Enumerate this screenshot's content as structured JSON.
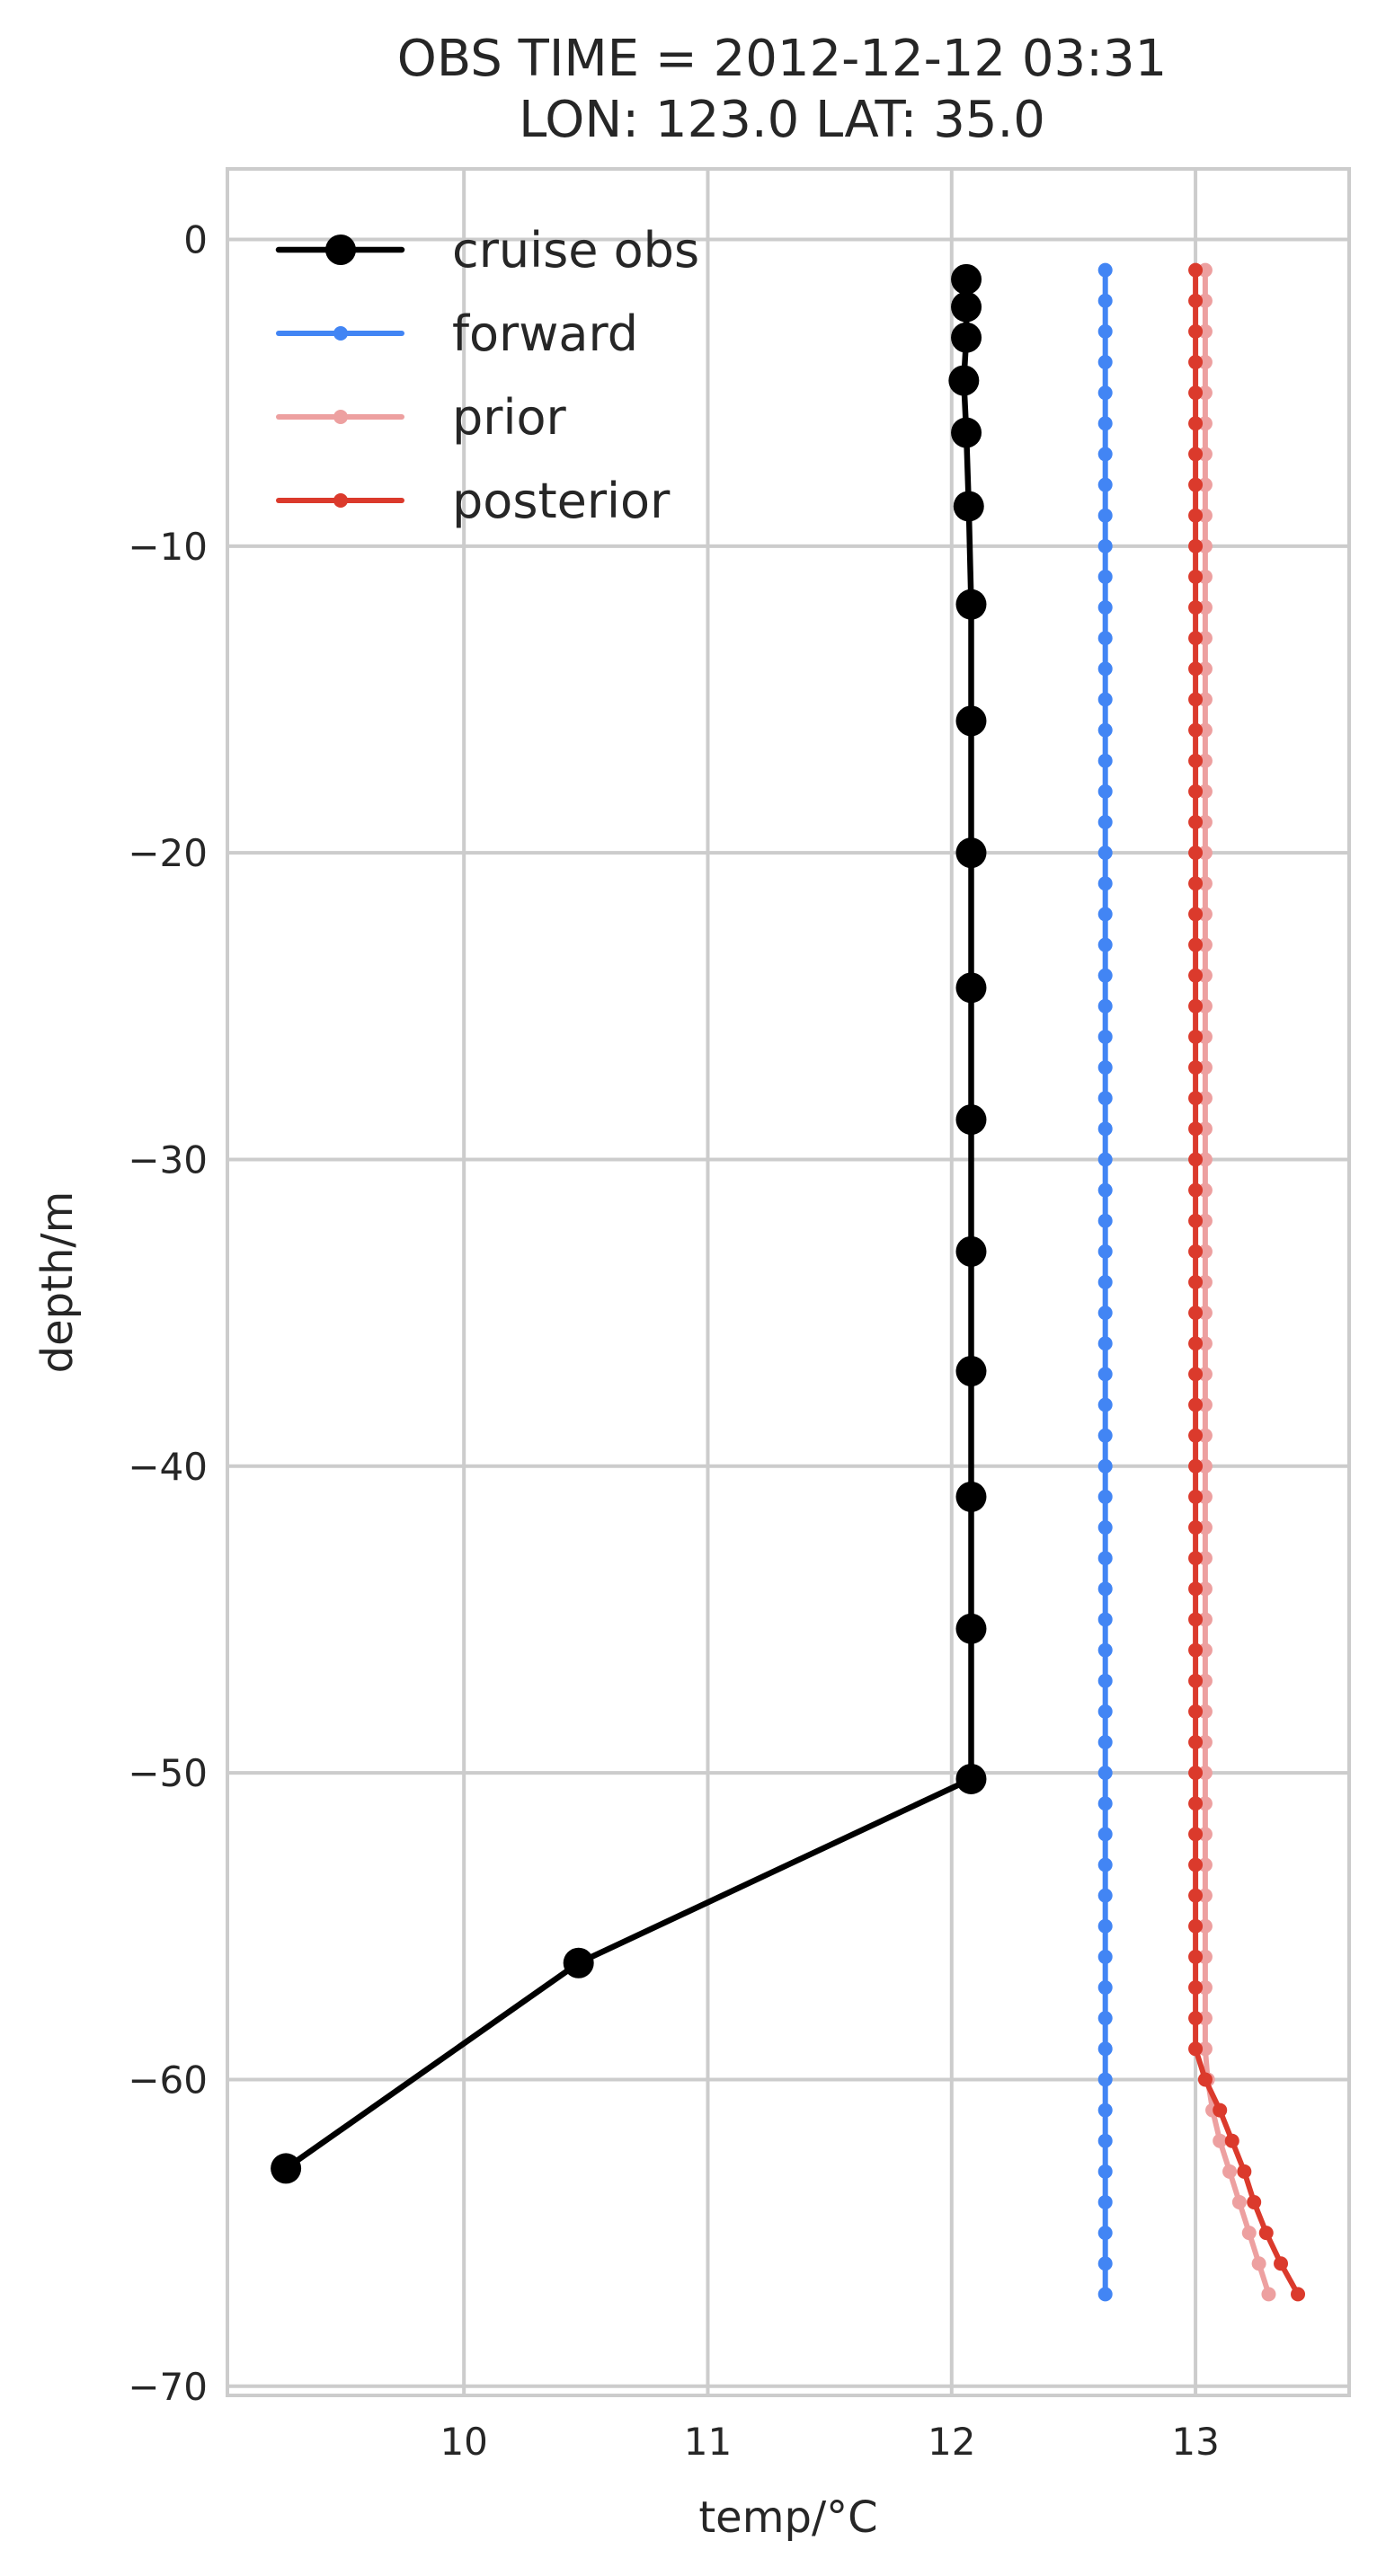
{
  "chart_data": {
    "type": "line",
    "title": [
      "OBS TIME = 2012-12-12 03:31",
      "LON: 123.0 LAT: 35.0"
    ],
    "xlabel": "temp/°C",
    "ylabel": "depth/m",
    "xlim": [
      9.03,
      13.63
    ],
    "ylim": [
      -70.3,
      2.3
    ],
    "xticks": [
      10,
      11,
      12,
      13
    ],
    "yticks": [
      0,
      -10,
      -20,
      -30,
      -40,
      -50,
      -60,
      -70
    ],
    "grid": true,
    "legend_position": "top-left",
    "series": [
      {
        "name": "cruise obs",
        "color": "#000000",
        "marker": "large-circle",
        "x": [
          12.06,
          12.06,
          12.06,
          12.05,
          12.06,
          12.07,
          12.08,
          12.08,
          12.08,
          12.08,
          12.08,
          12.08,
          12.08,
          12.08,
          12.08,
          12.08,
          10.47,
          9.27
        ],
        "y": [
          -1.3,
          -2.2,
          -3.2,
          -4.6,
          -6.3,
          -8.7,
          -11.9,
          -15.7,
          -20.0,
          -24.4,
          -28.7,
          -33.0,
          -36.9,
          -41.0,
          -45.3,
          -50.2,
          -56.2,
          -62.9
        ]
      },
      {
        "name": "forward",
        "color": "#4285f4",
        "marker": "small-circle",
        "x_values": [
          12.63,
          12.63,
          12.63,
          12.63,
          12.63,
          12.63,
          12.63,
          12.63,
          12.63,
          12.63,
          12.63,
          12.63,
          12.63,
          12.63,
          12.63,
          12.63,
          12.63,
          12.63,
          12.63,
          12.63,
          12.63,
          12.63,
          12.63,
          12.63,
          12.63,
          12.63,
          12.63,
          12.63,
          12.63,
          12.63,
          12.63,
          12.63,
          12.63,
          12.63,
          12.63,
          12.63,
          12.63,
          12.63,
          12.63,
          12.63,
          12.63,
          12.63,
          12.63,
          12.63,
          12.63,
          12.63,
          12.63,
          12.63,
          12.63,
          12.63,
          12.63,
          12.63,
          12.63,
          12.63,
          12.63,
          12.63,
          12.63,
          12.63,
          12.63,
          12.63,
          12.63,
          12.63,
          12.63,
          12.63,
          12.63,
          12.63,
          12.63
        ],
        "depth_start": -1,
        "depth_end": -67,
        "depth_step": -1
      },
      {
        "name": "prior",
        "color": "#eda0a0",
        "marker": "small-circle",
        "x_values": [
          13.04,
          13.04,
          13.04,
          13.04,
          13.04,
          13.04,
          13.04,
          13.04,
          13.04,
          13.04,
          13.04,
          13.04,
          13.04,
          13.04,
          13.04,
          13.04,
          13.04,
          13.04,
          13.04,
          13.04,
          13.04,
          13.04,
          13.04,
          13.04,
          13.04,
          13.04,
          13.04,
          13.04,
          13.04,
          13.04,
          13.04,
          13.04,
          13.04,
          13.04,
          13.04,
          13.04,
          13.04,
          13.04,
          13.04,
          13.04,
          13.04,
          13.04,
          13.04,
          13.04,
          13.04,
          13.04,
          13.04,
          13.04,
          13.04,
          13.04,
          13.04,
          13.04,
          13.04,
          13.04,
          13.04,
          13.04,
          13.04,
          13.04,
          13.04,
          13.05,
          13.07,
          13.1,
          13.14,
          13.18,
          13.22,
          13.26,
          13.3
        ],
        "depth_start": -1,
        "depth_end": -67,
        "depth_step": -1
      },
      {
        "name": "posterior",
        "color": "#db3a2c",
        "marker": "small-circle",
        "x_values": [
          13.0,
          13.0,
          13.0,
          13.0,
          13.0,
          13.0,
          13.0,
          13.0,
          13.0,
          13.0,
          13.0,
          13.0,
          13.0,
          13.0,
          13.0,
          13.0,
          13.0,
          13.0,
          13.0,
          13.0,
          13.0,
          13.0,
          13.0,
          13.0,
          13.0,
          13.0,
          13.0,
          13.0,
          13.0,
          13.0,
          13.0,
          13.0,
          13.0,
          13.0,
          13.0,
          13.0,
          13.0,
          13.0,
          13.0,
          13.0,
          13.0,
          13.0,
          13.0,
          13.0,
          13.0,
          13.0,
          13.0,
          13.0,
          13.0,
          13.0,
          13.0,
          13.0,
          13.0,
          13.0,
          13.0,
          13.0,
          13.0,
          13.0,
          13.0,
          13.04,
          13.1,
          13.15,
          13.2,
          13.24,
          13.29,
          13.35,
          13.42
        ],
        "depth_start": -1,
        "depth_end": -67,
        "depth_step": -1
      }
    ]
  }
}
